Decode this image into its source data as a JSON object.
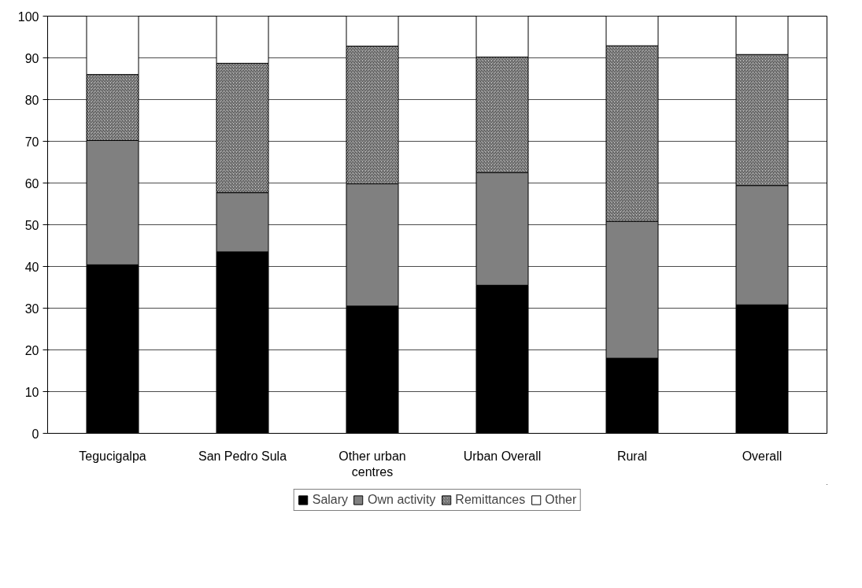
{
  "chart_data": {
    "type": "bar",
    "stacked": true,
    "categories": [
      "Tegucigalpa",
      "San Pedro Sula",
      "Other urban centres",
      "Urban Overall",
      "Rural",
      "Overall"
    ],
    "series": [
      {
        "name": "Salary",
        "color": "#000000",
        "values": [
          40.4,
          43.5,
          30.5,
          35.5,
          18.0,
          30.8
        ]
      },
      {
        "name": "Own activity",
        "color": "#808080",
        "values": [
          29.8,
          14.2,
          29.3,
          27.0,
          32.8,
          28.6
        ]
      },
      {
        "name": "Remittances",
        "color": "#c8c8c8",
        "values": [
          15.8,
          31.0,
          33.0,
          27.7,
          42.1,
          31.4
        ]
      },
      {
        "name": "Other",
        "color": "#ffffff",
        "values": [
          14.0,
          11.3,
          7.2,
          9.8,
          7.1,
          9.2
        ]
      }
    ],
    "ylim": [
      0,
      100
    ],
    "yticks": [
      0,
      10,
      20,
      30,
      40,
      50,
      60,
      70,
      80,
      90,
      100
    ],
    "grid": "y",
    "legend": "bottom"
  }
}
